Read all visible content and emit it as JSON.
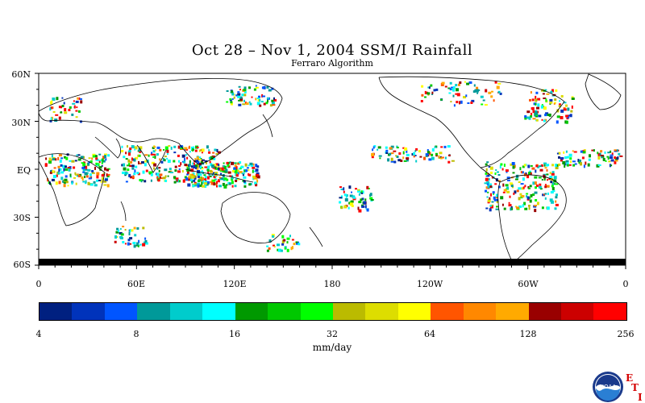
{
  "map": {
    "title": "Oct 28 – Nov 1, 2004 SSM/I Rainfall",
    "subtitle": "Ferraro Algorithm",
    "lat_labels": [
      "60N",
      "30N",
      "EQ",
      "30S",
      "60S"
    ],
    "lon_labels": [
      "0",
      "60E",
      "120E",
      "180",
      "120W",
      "60W",
      "0"
    ],
    "lat_range": [
      -60,
      60
    ],
    "lon_range": [
      0,
      360
    ],
    "projection": "cylindrical equidistant, 0°–360° E"
  },
  "colorbar": {
    "ticks": [
      "4",
      "8",
      "16",
      "32",
      "64",
      "128",
      "256"
    ],
    "unit": "mm/day",
    "colors": [
      "#002080",
      "#0033bb",
      "#0055ff",
      "#009999",
      "#00cccc",
      "#00ffff",
      "#009900",
      "#00c800",
      "#00ff00",
      "#bbbb00",
      "#dddd00",
      "#ffff00",
      "#ff5500",
      "#ff8800",
      "#ffaa00",
      "#990000",
      "#cc0000",
      "#ff0000"
    ]
  },
  "logo": {
    "name": "NOAA",
    "eti_letters": [
      "E",
      "T",
      "I"
    ]
  }
}
